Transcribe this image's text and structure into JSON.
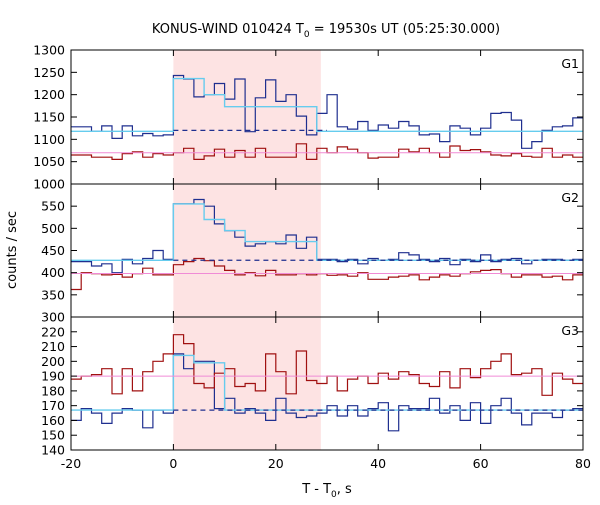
{
  "chart_data": {
    "type": "line",
    "title": "KONUS-WIND 010424 T",
    "title_subscript": "0",
    "title_suffix": " = 19530s UT (05:25:30.000)",
    "xlabel": "T - T",
    "xlabel_subscript": "0",
    "xlabel_suffix": ", s",
    "ylabel": "counts / sec",
    "xlim": [
      -20,
      80
    ],
    "x_ticks": [
      -20,
      0,
      20,
      40,
      60,
      80
    ],
    "grid": false,
    "shaded_interval": {
      "x": [
        0,
        28.8
      ],
      "color": "#fde3e3"
    },
    "bin_edges": [
      -20,
      -18,
      -16,
      -14,
      -12,
      -10,
      -8,
      -6,
      -4,
      -2,
      0,
      2,
      4,
      6,
      8,
      10,
      12,
      14,
      16,
      18,
      20,
      22,
      24,
      26,
      28,
      30,
      32,
      34,
      36,
      38,
      40,
      42,
      44,
      46,
      48,
      50,
      52,
      54,
      56,
      58,
      60,
      62,
      64,
      66,
      68,
      70,
      72,
      74,
      76,
      78,
      80
    ],
    "colors": {
      "blue": "#1f2f8f",
      "red": "#a01010",
      "cyan": "#66ccee",
      "pink": "#f08bd6"
    },
    "panels": [
      {
        "label": "G1",
        "ylim": [
          1000,
          1300
        ],
        "y_ticks": [
          1000,
          1050,
          1100,
          1150,
          1200,
          1250,
          1300
        ],
        "series": [
          {
            "role": "blue-hist",
            "values": [
              1128,
              1128,
              1118,
              1130,
              1102,
              1130,
              1108,
              1113,
              1108,
              1110,
              1243,
              1235,
              1195,
              1200,
              1225,
              1190,
              1235,
              1117,
              1193,
              1233,
              1185,
              1200,
              1152,
              1110,
              1158,
              1200,
              1128,
              1123,
              1140,
              1120,
              1132,
              1125,
              1140,
              1130,
              1110,
              1112,
              1095,
              1130,
              1125,
              1110,
              1125,
              1158,
              1160,
              1143,
              1080,
              1095,
              1120,
              1128,
              1130,
              1148
            ]
          },
          {
            "role": "red-hist",
            "values": [
              1065,
              1065,
              1060,
              1060,
              1055,
              1068,
              1072,
              1060,
              1068,
              1065,
              1070,
              1080,
              1055,
              1063,
              1078,
              1060,
              1075,
              1060,
              1080,
              1060,
              1060,
              1060,
              1090,
              1055,
              1080,
              1070,
              1083,
              1078,
              1070,
              1058,
              1060,
              1060,
              1078,
              1072,
              1080,
              1070,
              1060,
              1085,
              1075,
              1077,
              1072,
              1065,
              1063,
              1068,
              1062,
              1060,
              1080,
              1060,
              1065,
              1060
            ]
          },
          {
            "role": "cyan-model",
            "values": [
              1118,
              1118,
              1118,
              1118,
              1118,
              1118,
              1118,
              1118,
              1118,
              1118,
              1236,
              1236,
              1236,
              1200,
              1200,
              1173,
              1173,
              1173,
              1173,
              1173,
              1173,
              1173,
              1173,
              1173,
              1118,
              1118,
              1118,
              1118,
              1118,
              1118,
              1118,
              1118,
              1118,
              1118,
              1118,
              1118,
              1118,
              1118,
              1118,
              1118,
              1118,
              1118,
              1118,
              1118,
              1118,
              1118,
              1118,
              1118,
              1118,
              1118
            ]
          },
          {
            "role": "pink-model",
            "value": 1070
          },
          {
            "role": "blue-dashed",
            "from": 0,
            "to": 30,
            "value": 1120
          }
        ]
      },
      {
        "label": "G2",
        "ylim": [
          300,
          600
        ],
        "y_ticks": [
          300,
          350,
          400,
          450,
          500,
          550
        ],
        "series": [
          {
            "role": "blue-hist",
            "values": [
              425,
              425,
              415,
              420,
              400,
              430,
              420,
              432,
              450,
              430,
              555,
              555,
              565,
              550,
              510,
              495,
              480,
              460,
              465,
              470,
              465,
              485,
              455,
              480,
              430,
              430,
              425,
              430,
              420,
              432,
              428,
              430,
              445,
              440,
              430,
              425,
              432,
              418,
              430,
              425,
              440,
              425,
              430,
              432,
              420,
              428,
              430,
              430,
              428,
              430
            ]
          },
          {
            "role": "red-hist",
            "values": [
              362,
              400,
              398,
              395,
              396,
              390,
              398,
              410,
              395,
              395,
              418,
              425,
              432,
              427,
              415,
              405,
              395,
              400,
              393,
              405,
              395,
              395,
              398,
              395,
              398,
              394,
              395,
              392,
              400,
              385,
              385,
              390,
              392,
              395,
              384,
              390,
              395,
              392,
              398,
              402,
              405,
              407,
              398,
              390,
              395,
              395,
              390,
              392,
              384,
              395
            ]
          },
          {
            "role": "cyan-model",
            "values": [
              428,
              428,
              428,
              428,
              428,
              428,
              428,
              428,
              428,
              428,
              555,
              555,
              555,
              520,
              520,
              495,
              495,
              470,
              470,
              470,
              470,
              470,
              470,
              470,
              428,
              428,
              428,
              428,
              428,
              428,
              428,
              428,
              428,
              428,
              428,
              428,
              428,
              428,
              428,
              428,
              428,
              428,
              428,
              428,
              428,
              428,
              428,
              428,
              428,
              428
            ]
          },
          {
            "role": "pink-model",
            "value": 398
          },
          {
            "role": "blue-dashed",
            "from": 0,
            "to": 80,
            "value": 428
          }
        ]
      },
      {
        "label": "G3",
        "ylim": [
          140,
          230
        ],
        "y_ticks": [
          140,
          150,
          160,
          170,
          180,
          190,
          200,
          210,
          220
        ],
        "series": [
          {
            "role": "blue-hist",
            "values": [
              160,
              168,
              165,
              158,
              165,
              168,
              167,
              155,
              167,
              165,
              205,
              195,
              200,
              200,
              168,
              175,
              165,
              168,
              165,
              160,
              175,
              165,
              162,
              163,
              165,
              170,
              163,
              170,
              163,
              168,
              172,
              153,
              170,
              168,
              168,
              175,
              165,
              170,
              160,
              172,
              158,
              170,
              175,
              165,
              157,
              165,
              165,
              162,
              167,
              168
            ]
          },
          {
            "role": "red-hist",
            "values": [
              188,
              190,
              191,
              195,
              178,
              195,
              180,
              193,
              200,
              205,
              218,
              212,
              185,
              182,
              192,
              195,
              183,
              185,
              180,
              205,
              193,
              178,
              207,
              187,
              185,
              190,
              180,
              188,
              190,
              185,
              192,
              188,
              193,
              191,
              185,
              183,
              193,
              182,
              195,
              189,
              195,
              200,
              205,
              191,
              192,
              195,
              177,
              192,
              188,
              185
            ]
          },
          {
            "role": "cyan-model",
            "values": [
              167,
              167,
              167,
              167,
              167,
              167,
              167,
              167,
              167,
              167,
              204,
              204,
              199,
              199,
              199,
              167,
              167,
              167,
              167,
              167,
              167,
              167,
              167,
              167,
              167,
              167,
              167,
              167,
              167,
              167,
              167,
              167,
              167,
              167,
              167,
              167,
              167,
              167,
              167,
              167,
              167,
              167,
              167,
              167,
              167,
              167,
              167,
              167,
              167,
              167
            ]
          },
          {
            "role": "pink-model",
            "value": 190
          },
          {
            "role": "blue-dashed",
            "from": 0,
            "to": 80,
            "value": 167
          }
        ]
      }
    ]
  }
}
